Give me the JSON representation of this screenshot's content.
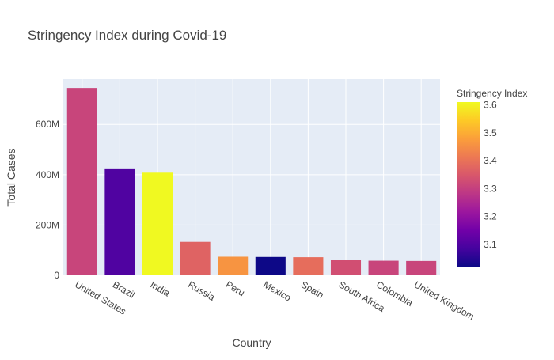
{
  "chart_data": {
    "type": "bar",
    "title": "Stringency Index during Covid-19",
    "xlabel": "Country",
    "ylabel": "Total Cases",
    "categories": [
      "United States",
      "Brazil",
      "India",
      "Russia",
      "Peru",
      "Mexico",
      "Spain",
      "South Africa",
      "Colombia",
      "United Kingdom"
    ],
    "values": [
      745000000,
      425000000,
      408000000,
      133000000,
      74000000,
      73000000,
      72000000,
      61000000,
      58000000,
      57000000
    ],
    "color_values": [
      3.31,
      3.1,
      3.61,
      3.37,
      3.46,
      3.02,
      3.39,
      3.33,
      3.31,
      3.31
    ],
    "ylim": [
      0,
      780000000
    ],
    "yticks": [
      0,
      200000000,
      400000000,
      600000000
    ],
    "ytick_labels": [
      "0",
      "200M",
      "400M",
      "600M"
    ],
    "grid": true,
    "plot_background": "#e5ecf6",
    "colorbar": {
      "title": "Stringency Index",
      "range": [
        3.02,
        3.61
      ],
      "ticks": [
        3.1,
        3.2,
        3.3,
        3.4,
        3.5,
        3.6
      ],
      "tick_labels": [
        "3.1",
        "3.2",
        "3.3",
        "3.4",
        "3.5",
        "3.6"
      ],
      "colorscale": [
        "#0d0887",
        "#46039f",
        "#7201a8",
        "#9c179e",
        "#bd3786",
        "#d8576b",
        "#ed7953",
        "#fb9f3a",
        "#fdca26",
        "#f0f921"
      ]
    }
  }
}
